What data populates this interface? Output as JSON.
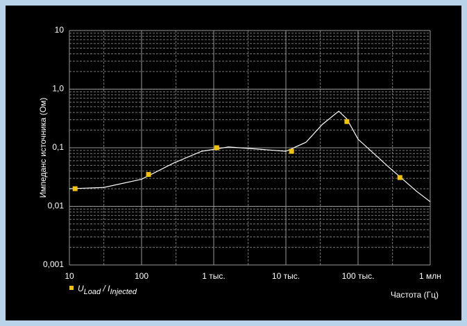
{
  "chart_data": {
    "type": "scatter",
    "log_x": true,
    "log_y": true,
    "y_label": "Импеданс источника (Ом)",
    "x_label": "Частота (Гц)",
    "xlim": [
      10,
      1000000
    ],
    "ylim": [
      0.001,
      10
    ],
    "xticks": [
      10,
      100,
      {
        "value": 1000,
        "label": "1 тыс."
      },
      {
        "value": 10000,
        "label": "10 тыс."
      },
      {
        "value": 100000,
        "label": "100 тыс."
      },
      {
        "value": 1000000,
        "label": "1 млн"
      }
    ],
    "yticks": [
      {
        "value": 0.001,
        "label": "0,001"
      },
      {
        "value": 0.01,
        "label": "0,01"
      },
      {
        "value": 0.1,
        "label": "0,1"
      },
      {
        "value": 1,
        "label": "1,0"
      },
      10
    ],
    "x_minor_ticks": [
      30,
      300,
      3000,
      30000,
      300000
    ],
    "y_minor_ticks": [
      0.002,
      0.003,
      0.004,
      0.005,
      0.006,
      0.007,
      0.008,
      0.009,
      0.02,
      0.03,
      0.04,
      0.05,
      0.06,
      0.07,
      0.08,
      0.09,
      0.2,
      0.3,
      0.4,
      0.5,
      0.6,
      0.7,
      0.8,
      0.9,
      2,
      3,
      4,
      5,
      6,
      7,
      8,
      9
    ],
    "grid": true,
    "curve": {
      "color": "#ffffff",
      "x": [
        10,
        30,
        100,
        280,
        680,
        1600,
        4000,
        10000,
        19000,
        32000,
        54000,
        70000,
        100000,
        260000,
        650000,
        1000000
      ],
      "values": [
        0.02,
        0.021,
        0.029,
        0.055,
        0.087,
        0.103,
        0.095,
        0.087,
        0.124,
        0.25,
        0.42,
        0.31,
        0.14,
        0.048,
        0.018,
        0.012
      ]
    },
    "series": [
      {
        "name": [
          {
            "text": "U",
            "sub": false
          },
          {
            "text": "Load",
            "sub": true
          },
          {
            "text": " / I",
            "sub": false
          },
          {
            "text": "Injected",
            "sub": true
          }
        ],
        "color": "#f5c400",
        "x": [
          12,
          125,
          1100,
          12000,
          70000,
          380000
        ],
        "values": [
          0.02,
          0.035,
          0.1,
          0.087,
          0.28,
          0.031
        ]
      }
    ]
  }
}
